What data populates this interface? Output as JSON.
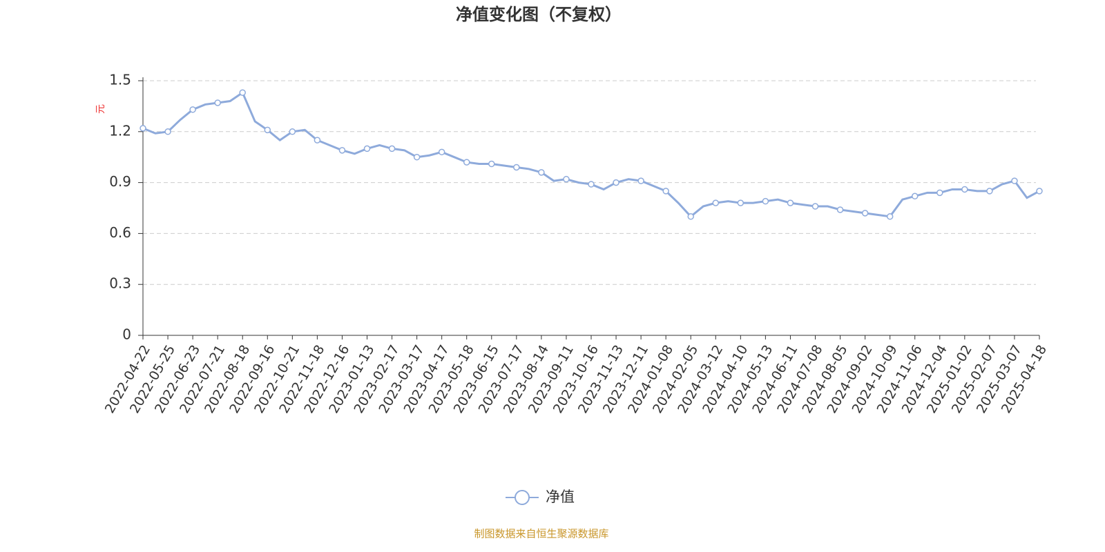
{
  "chart_data": {
    "type": "line",
    "title": "净值变化图（不复权）",
    "y_label": "元",
    "source": "制图数据来自恒生聚源数据库",
    "categories": [
      "2022-04-22",
      null,
      "2022-05-25",
      null,
      "2022-06-23",
      null,
      "2022-07-21",
      null,
      "2022-08-18",
      null,
      "2022-09-16",
      null,
      "2022-10-21",
      null,
      "2022-11-18",
      null,
      "2022-12-16",
      null,
      "2023-01-13",
      null,
      "2023-02-17",
      null,
      "2023-03-17",
      null,
      "2023-04-17",
      null,
      "2023-05-18",
      null,
      "2023-06-15",
      null,
      "2023-07-17",
      null,
      "2023-08-14",
      null,
      "2023-09-11",
      null,
      "2023-10-16",
      null,
      "2023-11-13",
      null,
      "2023-12-11",
      null,
      "2024-01-08",
      null,
      "2024-02-05",
      null,
      "2024-03-12",
      null,
      "2024-04-10",
      null,
      "2024-05-13",
      null,
      "2024-06-11",
      null,
      "2024-07-08",
      null,
      "2024-08-05",
      null,
      "2024-09-02",
      null,
      "2024-10-09",
      null,
      "2024-11-06",
      null,
      "2024-12-04",
      null,
      "2025-01-02",
      null,
      "2025-02-07",
      null,
      "2025-03-07",
      null,
      "2025-04-18"
    ],
    "series": [
      {
        "name": "净值",
        "color": "#8eaadb",
        "values": [
          1.22,
          1.19,
          1.2,
          1.27,
          1.33,
          1.36,
          1.37,
          1.38,
          1.43,
          1.26,
          1.21,
          1.15,
          1.2,
          1.21,
          1.15,
          1.12,
          1.09,
          1.07,
          1.1,
          1.12,
          1.1,
          1.09,
          1.05,
          1.06,
          1.08,
          1.05,
          1.02,
          1.01,
          1.01,
          1.0,
          0.99,
          0.98,
          0.96,
          0.91,
          0.92,
          0.9,
          0.89,
          0.86,
          0.9,
          0.92,
          0.91,
          0.88,
          0.85,
          0.78,
          0.7,
          0.76,
          0.78,
          0.79,
          0.78,
          0.78,
          0.79,
          0.8,
          0.78,
          0.77,
          0.76,
          0.76,
          0.74,
          0.73,
          0.72,
          0.71,
          0.7,
          0.8,
          0.82,
          0.84,
          0.84,
          0.86,
          0.86,
          0.85,
          0.85,
          0.89,
          0.91,
          0.81,
          0.85
        ]
      }
    ],
    "ylim": [
      0,
      1.5
    ],
    "yticks": [
      0,
      {
        "value": 0.3,
        "label": "0.3"
      },
      {
        "value": 0.6,
        "label": "0.6"
      },
      {
        "value": 0.9,
        "label": "0.9"
      },
      {
        "value": 1.2,
        "label": "1.2"
      },
      {
        "value": 1.5,
        "label": "1.5"
      }
    ],
    "grid": true
  }
}
